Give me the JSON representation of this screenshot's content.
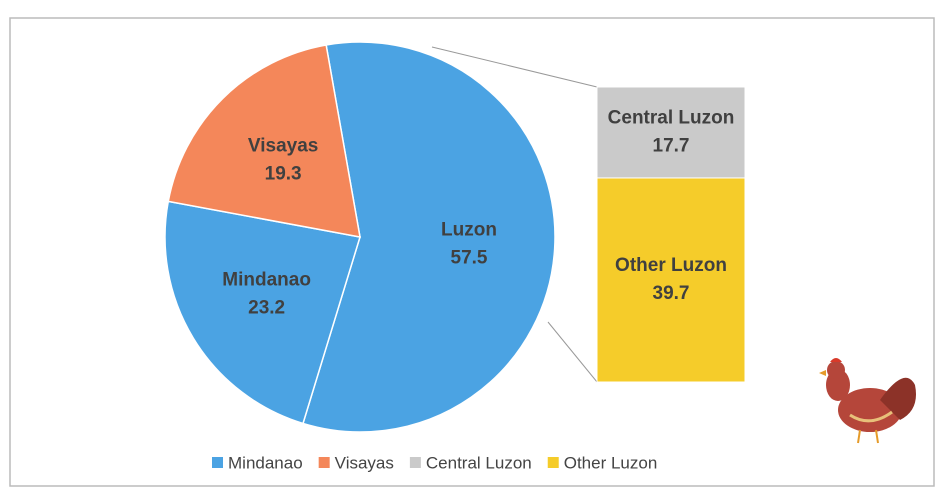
{
  "chart_data": {
    "type": "bar-of-pie",
    "categories": [
      "Luzon",
      "Mindanao",
      "Visayas"
    ],
    "values": [
      57.5,
      23.2,
      19.3
    ],
    "colors": [
      "#4ba3e3",
      "#4ba3e3",
      "#f4875a"
    ],
    "breakdown": {
      "of": 0,
      "categories": [
        "Central Luzon",
        "Other Luzon"
      ],
      "values": [
        17.7,
        39.7
      ],
      "colors": [
        "#cacaca",
        "#f5cc2a"
      ]
    }
  }
}
